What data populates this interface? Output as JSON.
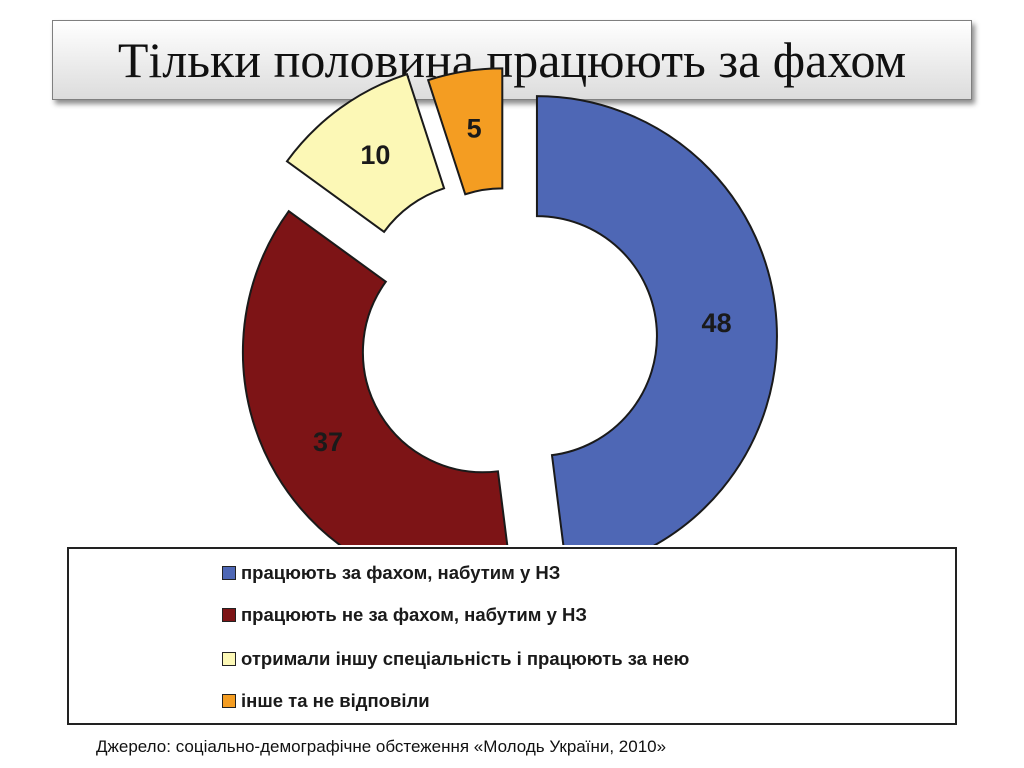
{
  "title": "Тільки половина працюють за фахом",
  "chart_data": {
    "type": "pie",
    "variant": "donut-exploded",
    "title": "",
    "slices": [
      {
        "label": "працюють за фахом, набутим у НЗ",
        "value": 48,
        "color": "#4e67b5"
      },
      {
        "label": "працюють не за фахом, набутим у НЗ",
        "value": 37,
        "color": "#7d1416"
      },
      {
        "label": "отримали іншу спеціальність і працюють за нею",
        "value": 10,
        "color": "#fcf8b6"
      },
      {
        "label": "інше та не відповіли",
        "value": 5,
        "color": "#f49d22"
      }
    ],
    "legend_position": "bottom"
  },
  "source": "Джерело: соціально-демографічне обстеження «Молодь України, 2010»"
}
